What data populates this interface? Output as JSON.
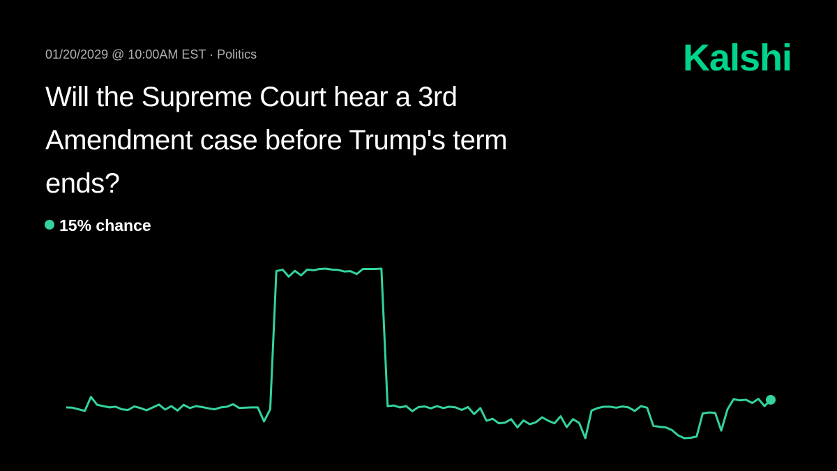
{
  "header": {
    "meta": "01/20/2029 @ 10:00AM EST · Politics",
    "title": "Will the Supreme Court hear a 3rd Amendment case before Trump's term ends?",
    "brand": "Kalshi"
  },
  "chart_data": {
    "type": "line",
    "color": "#34d399",
    "current_label": "15% chance",
    "values": [
      12.6,
      12.5,
      12,
      11.5,
      15.9,
      13.4,
      13,
      12.6,
      12.8,
      12,
      11.8,
      12.9,
      12.4,
      11.7,
      12.6,
      13.5,
      11.9,
      13,
      11.6,
      13.4,
      12.4,
      13,
      12.7,
      12.3,
      12,
      12.6,
      12.8,
      13.6,
      12.4,
      12.5,
      12.6,
      12.6,
      8.2,
      12,
      55.5,
      56,
      53.8,
      55.6,
      54.2,
      56,
      55.8,
      56.2,
      56.3,
      56,
      55.9,
      55.4,
      55.5,
      54.6,
      56.2,
      56.2,
      56.2,
      56.3,
      13,
      13.2,
      12.6,
      13,
      11.4,
      12.7,
      12.9,
      12.3,
      13,
      12.4,
      12.8,
      12.6,
      11.8,
      12.7,
      10.5,
      12.4,
      8.4,
      9,
      7.6,
      7.8,
      8.9,
      6.3,
      8.5,
      7.3,
      7.9,
      9.5,
      8.4,
      7.6,
      9.8,
      6.4,
      8.9,
      7.7,
      2.9,
      11.6,
      12.4,
      12.8,
      12.8,
      12.5,
      12.9,
      12.6,
      11.5,
      13,
      12.5,
      6.8,
      6.5,
      6.3,
      5.5,
      3.8,
      2.9,
      3,
      3.4,
      10.7,
      11,
      10.9,
      5.3,
      12,
      15.2,
      14.8,
      15,
      14,
      15.3,
      13,
      15
    ]
  }
}
